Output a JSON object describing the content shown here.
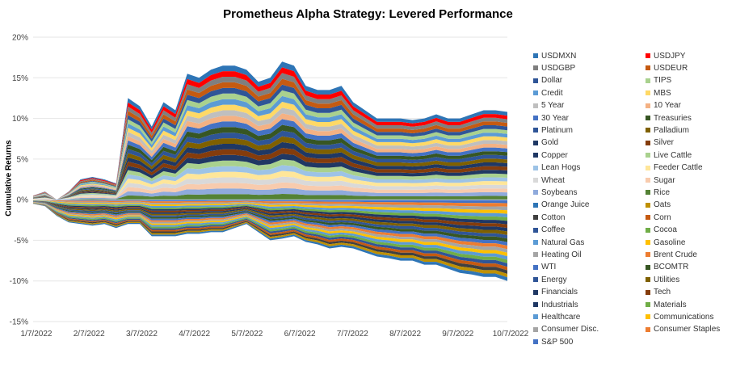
{
  "chart_data": {
    "type": "area",
    "stacked": true,
    "title": "Prometheus Alpha Strategy: Levered Performance",
    "xlabel": "",
    "ylabel": "Cumulative Returns",
    "ylim": [
      -0.15,
      0.2
    ],
    "y_ticks": [
      "-15%",
      "-10%",
      "-5%",
      "0%",
      "5%",
      "10%",
      "15%",
      "20%"
    ],
    "x_ticks": [
      "1/7/2022",
      "2/7/2022",
      "3/7/2022",
      "4/7/2022",
      "5/7/2022",
      "6/7/2022",
      "7/7/2022",
      "8/7/2022",
      "9/7/2022",
      "10/7/2022"
    ],
    "grid": true,
    "legend_position": "right",
    "x": [
      "1/7/2022",
      "1/14/2022",
      "1/21/2022",
      "1/28/2022",
      "2/4/2022",
      "2/11/2022",
      "2/18/2022",
      "2/25/2022",
      "3/4/2022",
      "3/11/2022",
      "3/18/2022",
      "3/25/2022",
      "4/1/2022",
      "4/8/2022",
      "4/15/2022",
      "4/22/2022",
      "4/29/2022",
      "5/6/2022",
      "5/13/2022",
      "5/20/2022",
      "5/27/2022",
      "6/3/2022",
      "6/10/2022",
      "6/17/2022",
      "6/24/2022",
      "7/1/2022",
      "7/8/2022",
      "7/15/2022",
      "7/22/2022",
      "7/29/2022",
      "8/5/2022",
      "8/12/2022",
      "8/19/2022",
      "8/26/2022",
      "9/2/2022",
      "9/9/2022",
      "9/16/2022",
      "9/23/2022",
      "9/30/2022",
      "10/7/2022",
      "10/14/2022"
    ],
    "top_envelope": [
      0.005,
      0.01,
      -0.005,
      0.01,
      0.025,
      0.028,
      0.025,
      0.02,
      0.125,
      0.115,
      0.09,
      0.12,
      0.11,
      0.155,
      0.15,
      0.16,
      0.165,
      0.165,
      0.16,
      0.145,
      0.15,
      0.17,
      0.165,
      0.14,
      0.135,
      0.135,
      0.14,
      0.12,
      0.11,
      0.1,
      0.1,
      0.1,
      0.098,
      0.1,
      0.105,
      0.1,
      0.1,
      0.105,
      0.11,
      0.11,
      0.108
    ],
    "bottom_envelope": [
      -0.005,
      -0.008,
      -0.02,
      -0.028,
      -0.03,
      -0.032,
      -0.03,
      -0.035,
      -0.03,
      -0.03,
      -0.045,
      -0.045,
      -0.045,
      -0.042,
      -0.042,
      -0.04,
      -0.04,
      -0.035,
      -0.03,
      -0.04,
      -0.05,
      -0.048,
      -0.045,
      -0.052,
      -0.055,
      -0.06,
      -0.058,
      -0.06,
      -0.065,
      -0.07,
      -0.072,
      -0.075,
      -0.075,
      -0.08,
      -0.08,
      -0.085,
      -0.09,
      -0.092,
      -0.095,
      -0.095,
      -0.1
    ],
    "series": [
      {
        "name": "USDMXN",
        "color": "#2E75B6"
      },
      {
        "name": "USDJPY",
        "color": "#FF0000"
      },
      {
        "name": "USDGBP",
        "color": "#7F7F7F"
      },
      {
        "name": "USDEUR",
        "color": "#C55A11"
      },
      {
        "name": "Dollar",
        "color": "#2F5597"
      },
      {
        "name": "TIPS",
        "color": "#A9D18E"
      },
      {
        "name": "Credit",
        "color": "#5B9BD5"
      },
      {
        "name": "MBS",
        "color": "#FFD966"
      },
      {
        "name": "5 Year",
        "color": "#BFBFBF"
      },
      {
        "name": "10 Year",
        "color": "#F4B183"
      },
      {
        "name": "30 Year",
        "color": "#4472C4"
      },
      {
        "name": "Treasuries",
        "color": "#375623"
      },
      {
        "name": "Platinum",
        "color": "#2F5597"
      },
      {
        "name": "Palladium",
        "color": "#7F6000"
      },
      {
        "name": "Gold",
        "color": "#1F3864"
      },
      {
        "name": "Silver",
        "color": "#843C0C"
      },
      {
        "name": "Copper",
        "color": "#203864"
      },
      {
        "name": "Live Cattle",
        "color": "#A9D18E"
      },
      {
        "name": "Lean Hogs",
        "color": "#9DC3E6"
      },
      {
        "name": "Feeder Cattle",
        "color": "#FFE699"
      },
      {
        "name": "Wheat",
        "color": "#D9D9D9"
      },
      {
        "name": "Sugar",
        "color": "#F8CBAD"
      },
      {
        "name": "Soybeans",
        "color": "#8FAADC"
      },
      {
        "name": "Rice",
        "color": "#548235"
      },
      {
        "name": "Orange Juice",
        "color": "#2E75B6"
      },
      {
        "name": "Oats",
        "color": "#BF9000"
      },
      {
        "name": "Cotton",
        "color": "#404040"
      },
      {
        "name": "Corn",
        "color": "#C55A11"
      },
      {
        "name": "Coffee",
        "color": "#2F5597"
      },
      {
        "name": "Cocoa",
        "color": "#70AD47"
      },
      {
        "name": "Natural Gas",
        "color": "#5B9BD5"
      },
      {
        "name": "Gasoline",
        "color": "#FFC000"
      },
      {
        "name": "Heating Oil",
        "color": "#A5A5A5"
      },
      {
        "name": "Brent Crude",
        "color": "#ED7D31"
      },
      {
        "name": "WTI",
        "color": "#4472C4"
      },
      {
        "name": "BCOMTR",
        "color": "#375623"
      },
      {
        "name": "Energy",
        "color": "#2F5597"
      },
      {
        "name": "Utilities",
        "color": "#7F6000"
      },
      {
        "name": "Financials",
        "color": "#203864"
      },
      {
        "name": "Tech",
        "color": "#843C0C"
      },
      {
        "name": "Industrials",
        "color": "#1F3864"
      },
      {
        "name": "Materials",
        "color": "#70AD47"
      },
      {
        "name": "Healthcare",
        "color": "#5B9BD5"
      },
      {
        "name": "Communications",
        "color": "#FFC000"
      },
      {
        "name": "Consumer Disc.",
        "color": "#A5A5A5"
      },
      {
        "name": "Consumer Staples",
        "color": "#ED7D31"
      },
      {
        "name": "S&P 500",
        "color": "#4472C4"
      }
    ]
  }
}
